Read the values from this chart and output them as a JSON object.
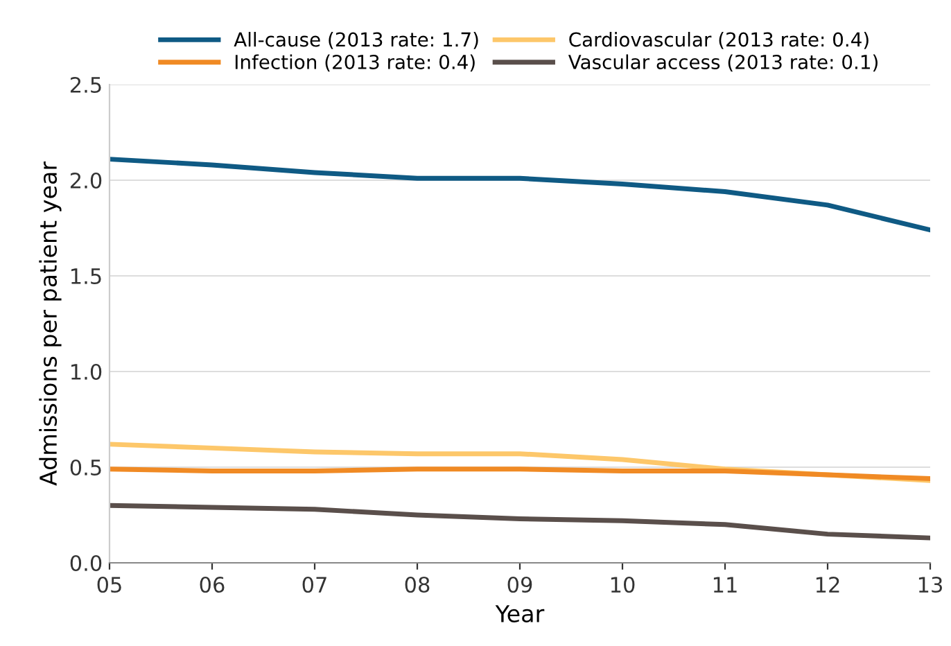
{
  "chart_data": {
    "type": "line",
    "xlabel": "Year",
    "ylabel": "Admissions per patient year",
    "categories": [
      "05",
      "06",
      "07",
      "08",
      "09",
      "10",
      "11",
      "12",
      "13"
    ],
    "series": [
      {
        "name": "All-cause (2013 rate: 1.7)",
        "color": "#0f5a84",
        "values": [
          2.11,
          2.08,
          2.04,
          2.01,
          2.01,
          1.98,
          1.94,
          1.87,
          1.74
        ]
      },
      {
        "name": "Cardiovascular (2013 rate: 0.4)",
        "color": "#fdc76a",
        "values": [
          0.62,
          0.6,
          0.58,
          0.57,
          0.57,
          0.54,
          0.49,
          0.46,
          0.43
        ]
      },
      {
        "name": "Infection (2013 rate: 0.4)",
        "color": "#f08a24",
        "values": [
          0.49,
          0.48,
          0.48,
          0.49,
          0.49,
          0.48,
          0.48,
          0.46,
          0.44
        ]
      },
      {
        "name": "Vascular access (2013 rate: 0.1)",
        "color": "#5a4f4b",
        "values": [
          0.3,
          0.29,
          0.28,
          0.25,
          0.23,
          0.22,
          0.2,
          0.15,
          0.13
        ]
      }
    ],
    "ylim": [
      0,
      2.5
    ],
    "yticks": [
      {
        "value": 0,
        "label": "0.0"
      },
      {
        "value": 0.5,
        "label": "0.5"
      },
      {
        "value": 1,
        "label": "1.0"
      },
      {
        "value": 1.5,
        "label": "1.5"
      },
      {
        "value": 2,
        "label": "2.0"
      },
      {
        "value": 2.5,
        "label": "2.5"
      }
    ],
    "grid": "y",
    "legend": "top",
    "marker": "none",
    "line_style": "solid"
  }
}
